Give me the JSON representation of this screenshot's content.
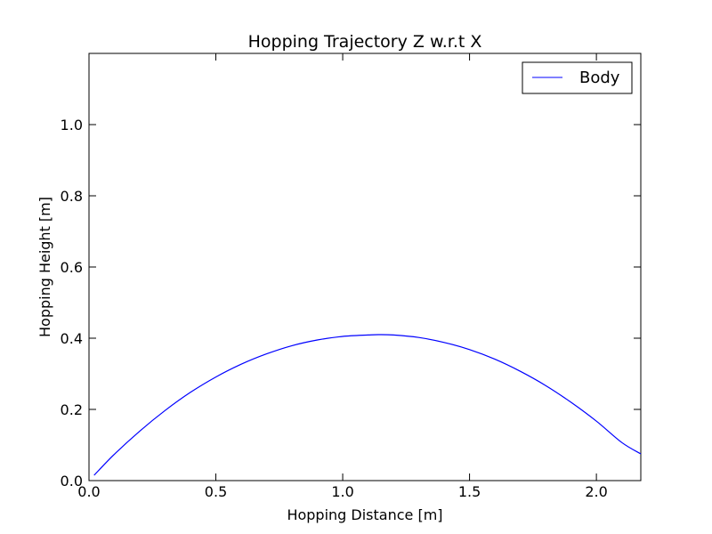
{
  "chart_data": {
    "type": "line",
    "title": "Hopping Trajectory Z w.r.t X",
    "xlabel": "Hopping Distance [m]",
    "ylabel": "Hopping Height [m]",
    "xlim": [
      0.0,
      2.175
    ],
    "ylim": [
      0.0,
      1.2
    ],
    "xticks": [
      0.0,
      0.5,
      1.0,
      1.5,
      2.0
    ],
    "xtick_labels": [
      "0.0",
      "0.5",
      "1.0",
      "1.5",
      "2.0"
    ],
    "yticks": [
      0.0,
      0.2,
      0.4,
      0.6,
      0.8,
      1.0
    ],
    "ytick_labels": [
      "0.0",
      "0.2",
      "0.4",
      "0.6",
      "0.8",
      "1.0"
    ],
    "grid": false,
    "legend_position": "top-right",
    "series": [
      {
        "name": "Body",
        "color": "#0000ff",
        "x": [
          0.02,
          0.1,
          0.2,
          0.3,
          0.4,
          0.5,
          0.6,
          0.7,
          0.8,
          0.9,
          1.0,
          1.1,
          1.14,
          1.2,
          1.3,
          1.4,
          1.5,
          1.6,
          1.7,
          1.8,
          1.9,
          2.0,
          2.1,
          2.175
        ],
        "y": [
          0.015,
          0.074,
          0.139,
          0.197,
          0.248,
          0.291,
          0.327,
          0.356,
          0.379,
          0.395,
          0.405,
          0.409,
          0.41,
          0.409,
          0.402,
          0.388,
          0.368,
          0.341,
          0.307,
          0.267,
          0.22,
          0.167,
          0.107,
          0.075
        ]
      }
    ]
  }
}
